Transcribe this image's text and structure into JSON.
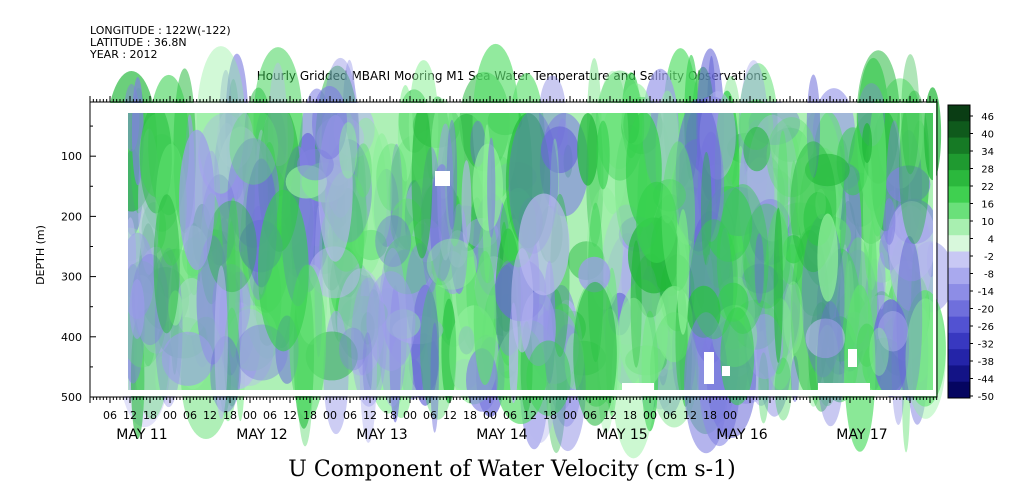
{
  "header": {
    "longitude": "LONGITUDE : 122W(-122)",
    "latitude": "LATITUDE : 36.8N",
    "year": "YEAR : 2012",
    "title": "Hourly Gridded MBARI Mooring M1 Sea Water Temperature and Salinity Observations"
  },
  "chart_data": {
    "type": "heatmap",
    "title": "Hourly Gridded MBARI Mooring M1 Sea Water Temperature and Salinity Observations",
    "variable_label": "U Component of Water Velocity (cm s-1)",
    "ylabel": "DEPTH (m)",
    "y_axis": {
      "ticks": [
        100,
        200,
        300,
        400,
        500
      ],
      "ylim": [
        500,
        10
      ],
      "inverted": true
    },
    "x_axis": {
      "start": "2012-05-10 06:00",
      "end": "2012-05-17 03:00",
      "hour_ticks": [
        "06",
        "12",
        "18",
        "00",
        "06",
        "12",
        "18",
        "00",
        "06",
        "12",
        "18",
        "00",
        "06",
        "12",
        "18",
        "00",
        "06",
        "12",
        "18",
        "00",
        "06",
        "12",
        "18",
        "00",
        "06",
        "12",
        "18",
        "00",
        "06",
        "12",
        "18",
        "00"
      ],
      "day_labels": [
        "MAY 11",
        "MAY 12",
        "MAY 13",
        "MAY 14",
        "MAY 15",
        "MAY 16",
        "MAY 17"
      ]
    },
    "colorbar": {
      "min": -50,
      "max": 48,
      "labels": [
        "46",
        "40",
        "34",
        "28",
        "22",
        "16",
        "10",
        "4",
        "-2",
        "-8",
        "-14",
        "-20",
        "-26",
        "-32",
        "-38",
        "-44",
        "-50"
      ],
      "colors_top_to_bottom": [
        "#0a3d14",
        "#0f5a1c",
        "#167a25",
        "#1f9a30",
        "#2bb83d",
        "#3fd050",
        "#6ae07a",
        "#a8efb0",
        "#d8f8dc",
        "#c8c8f4",
        "#a9a9ee",
        "#8d8de6",
        "#6f6fdc",
        "#5252d2",
        "#3838c0",
        "#2424a8",
        "#131386",
        "#050560"
      ]
    },
    "field_description_free": "",
    "missing_regions_note": ""
  }
}
